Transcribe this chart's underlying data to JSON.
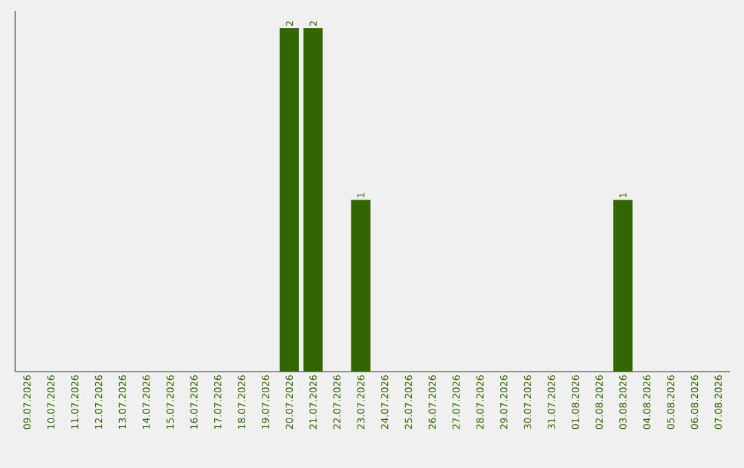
{
  "chart_data": {
    "type": "bar",
    "categories": [
      "09.07.2026",
      "10.07.2026",
      "11.07.2026",
      "12.07.2026",
      "13.07.2026",
      "14.07.2026",
      "15.07.2026",
      "16.07.2026",
      "17.07.2026",
      "18.07.2026",
      "19.07.2026",
      "20.07.2026",
      "21.07.2026",
      "22.07.2026",
      "23.07.2026",
      "24.07.2026",
      "25.07.2026",
      "26.07.2026",
      "27.07.2026",
      "28.07.2026",
      "29.07.2026",
      "30.07.2026",
      "31.07.2026",
      "01.08.2026",
      "02.08.2026",
      "03.08.2026",
      "04.08.2026",
      "05.08.2026",
      "06.08.2026",
      "07.08.2026"
    ],
    "values": [
      0,
      0,
      0,
      0,
      0,
      0,
      0,
      0,
      0,
      0,
      0,
      2,
      2,
      0,
      1,
      0,
      0,
      0,
      0,
      0,
      0,
      0,
      0,
      0,
      0,
      1,
      0,
      0,
      0,
      0
    ],
    "value_labels": [
      null,
      null,
      null,
      null,
      null,
      null,
      null,
      null,
      null,
      null,
      null,
      "2",
      "2",
      null,
      "1",
      null,
      null,
      null,
      null,
      null,
      null,
      null,
      null,
      null,
      null,
      "1",
      null,
      null,
      null,
      null
    ],
    "color": "#336600",
    "ylim": [
      0,
      2.1
    ],
    "tick_labels": "x",
    "grid": false
  }
}
